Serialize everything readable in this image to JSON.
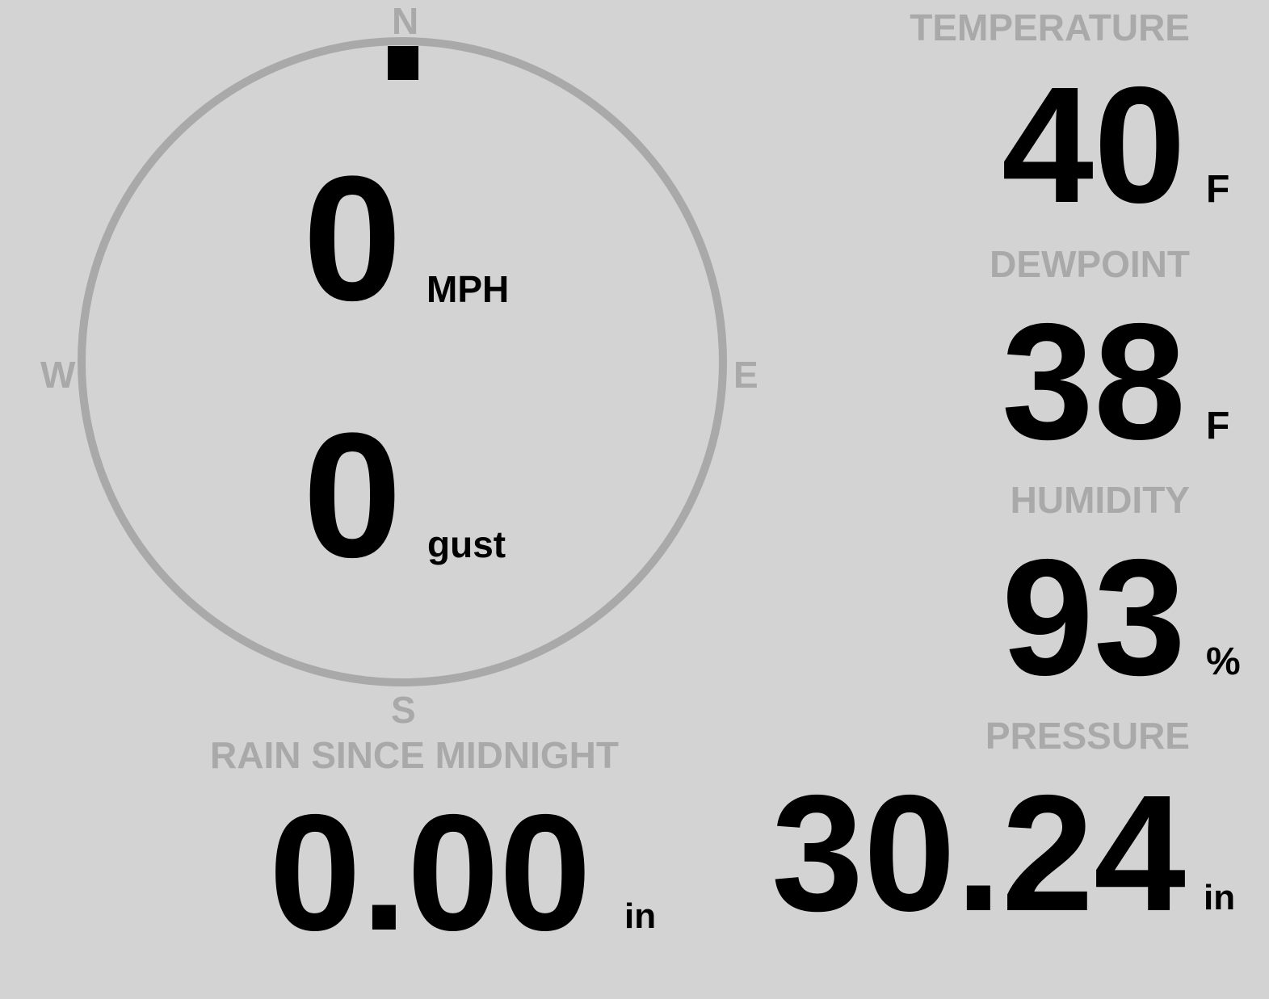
{
  "wind": {
    "speed": "0",
    "speed_unit": "MPH",
    "gust": "0",
    "gust_unit": "gust",
    "direction_degrees": 0,
    "compass": {
      "n": "N",
      "e": "E",
      "s": "S",
      "w": "W"
    }
  },
  "temperature": {
    "label": "TEMPERATURE",
    "value": "40",
    "unit": "F"
  },
  "dewpoint": {
    "label": "DEWPOINT",
    "value": "38",
    "unit": "F"
  },
  "humidity": {
    "label": "HUMIDITY",
    "value": "93",
    "unit": "%"
  },
  "pressure": {
    "label": "PRESSURE",
    "value": "30.24",
    "unit": "in"
  },
  "rain": {
    "label": "RAIN SINCE MIDNIGHT",
    "value": "0.00",
    "unit": "in"
  },
  "colors": {
    "background": "#d3d3d3",
    "label": "#a9a9a9",
    "value": "#000000"
  }
}
